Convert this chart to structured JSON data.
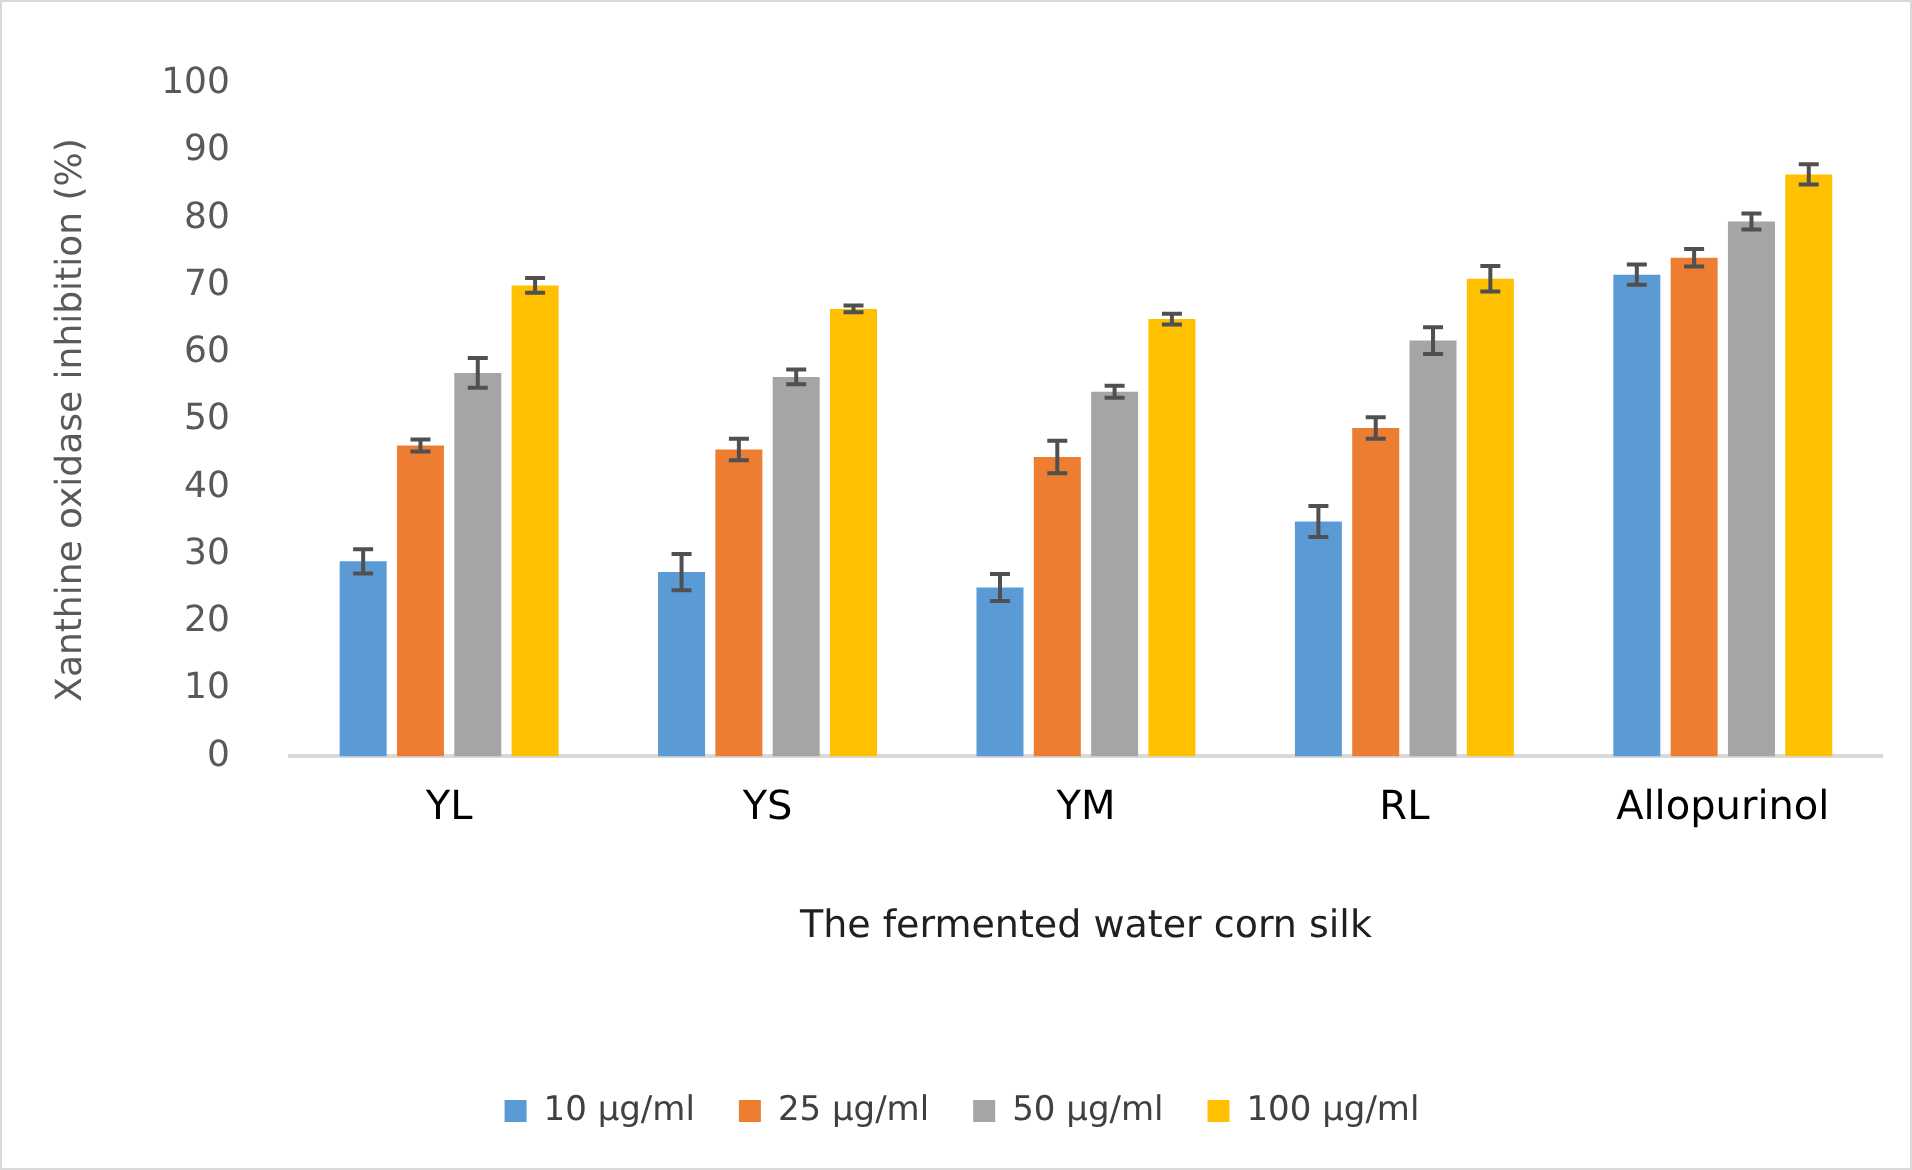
{
  "chart_data": {
    "type": "bar",
    "xlabel": "The fermented water corn silk",
    "ylabel": "Xanthine oxidase inhibition (%)",
    "categories": [
      "YL",
      "YS",
      "YM",
      "RL",
      "Allopurinol"
    ],
    "series": [
      {
        "name": "10 µg/ml",
        "color": "#5b9bd5",
        "values": [
          29.0,
          27.4,
          25.1,
          34.9,
          71.6
        ],
        "errors": [
          1.8,
          2.7,
          2.0,
          2.3,
          1.5
        ]
      },
      {
        "name": "25 µg/ml",
        "color": "#ed7d31",
        "values": [
          46.2,
          45.6,
          44.5,
          48.8,
          74.1
        ],
        "errors": [
          0.9,
          1.6,
          2.4,
          1.6,
          1.3
        ]
      },
      {
        "name": "50 µg/ml",
        "color": "#a5a5a5",
        "values": [
          57.0,
          56.4,
          54.2,
          61.8,
          79.5
        ],
        "errors": [
          2.2,
          1.1,
          0.9,
          2.0,
          1.2
        ]
      },
      {
        "name": "100 µg/ml",
        "color": "#ffc000",
        "values": [
          70.0,
          66.5,
          65.0,
          71.0,
          86.5
        ],
        "errors": [
          1.1,
          0.5,
          0.8,
          1.9,
          1.5
        ]
      }
    ],
    "ylim": [
      0,
      100
    ],
    "yticks": [
      0,
      10,
      20,
      30,
      40,
      50,
      60,
      70,
      80,
      90,
      100
    ],
    "grid": false,
    "legend": "bottom"
  }
}
